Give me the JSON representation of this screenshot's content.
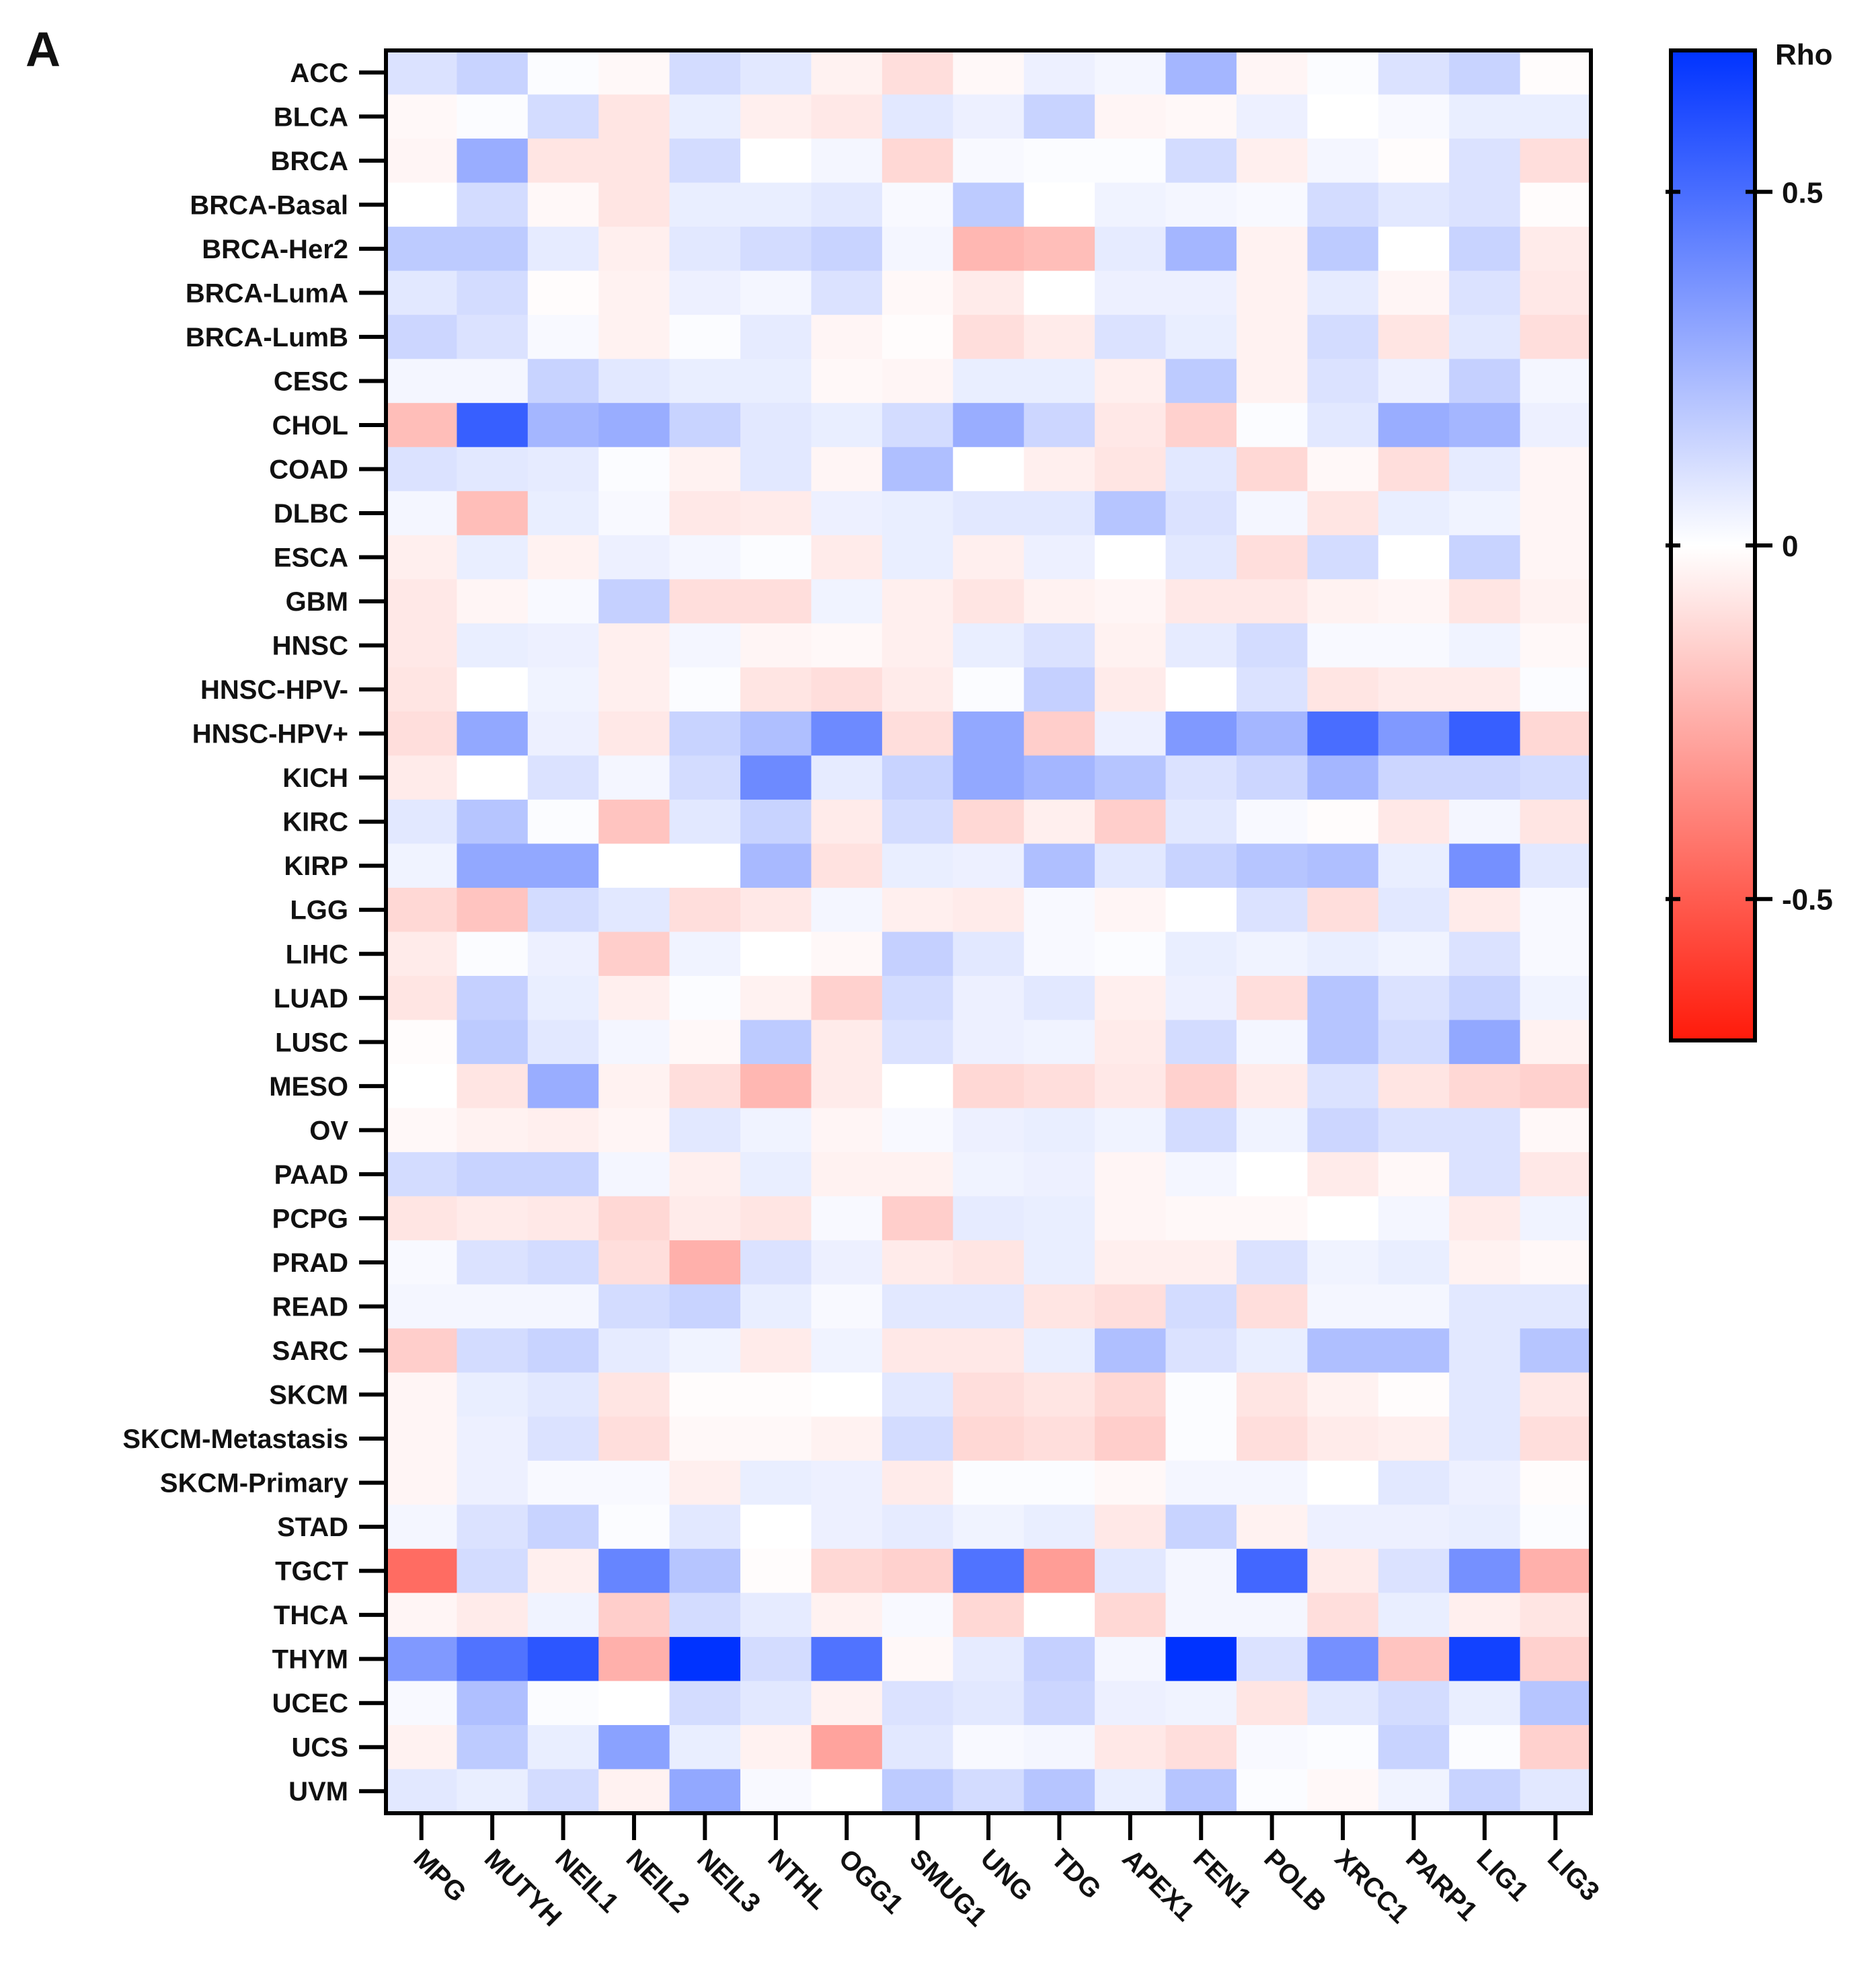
{
  "panel_label": "A",
  "chart_data": {
    "type": "heatmap",
    "title": "",
    "xlabel": "",
    "ylabel": "",
    "rows": [
      "ACC",
      "BLCA",
      "BRCA",
      "BRCA-Basal",
      "BRCA-Her2",
      "BRCA-LumA",
      "BRCA-LumB",
      "CESC",
      "CHOL",
      "COAD",
      "DLBC",
      "ESCA",
      "GBM",
      "HNSC",
      "HNSC-HPV-",
      "HNSC-HPV+",
      "KICH",
      "KIRC",
      "KIRP",
      "LGG",
      "LIHC",
      "LUAD",
      "LUSC",
      "MESO",
      "OV",
      "PAAD",
      "PCPG",
      "PRAD",
      "READ",
      "SARC",
      "SKCM",
      "SKCM-Metastasis",
      "SKCM-Primary",
      "STAD",
      "TGCT",
      "THCA",
      "THYM",
      "UCEC",
      "UCS",
      "UVM"
    ],
    "columns": [
      "MPG",
      "MUTYH",
      "NEIL1",
      "NEIL2",
      "NEIL3",
      "NTHL",
      "OGG1",
      "SMUG1",
      "UNG",
      "TDG",
      "APEX1",
      "FEN1",
      "POLB",
      "XRCC1",
      "PARP1",
      "LIG1",
      "LIG3"
    ],
    "values": [
      [
        0.1,
        0.15,
        0.01,
        -0.02,
        0.12,
        0.08,
        -0.04,
        -0.1,
        -0.02,
        0.05,
        0.03,
        0.25,
        -0.03,
        0.01,
        0.1,
        0.15,
        -0.01
      ],
      [
        -0.02,
        0.01,
        0.12,
        -0.08,
        0.06,
        -0.05,
        -0.07,
        0.08,
        0.05,
        0.15,
        -0.03,
        -0.02,
        0.05,
        0.0,
        0.02,
        0.06,
        0.06
      ],
      [
        -0.03,
        0.28,
        -0.08,
        -0.08,
        0.12,
        0.0,
        0.03,
        -0.12,
        0.02,
        0.01,
        0.01,
        0.12,
        -0.05,
        0.03,
        -0.01,
        0.1,
        -0.1
      ],
      [
        0.0,
        0.12,
        -0.02,
        -0.08,
        0.06,
        0.06,
        0.08,
        0.02,
        0.18,
        0.0,
        0.04,
        0.03,
        0.02,
        0.12,
        0.08,
        0.1,
        -0.01
      ],
      [
        0.18,
        0.18,
        0.07,
        -0.05,
        0.08,
        0.12,
        0.15,
        0.03,
        -0.22,
        -0.2,
        0.07,
        0.25,
        -0.04,
        0.18,
        0.0,
        0.15,
        -0.06
      ],
      [
        0.08,
        0.12,
        -0.01,
        -0.04,
        0.05,
        0.03,
        0.1,
        -0.02,
        -0.06,
        0.0,
        0.05,
        0.05,
        -0.04,
        0.07,
        -0.03,
        0.1,
        -0.07
      ],
      [
        0.14,
        0.1,
        0.02,
        -0.04,
        0.01,
        0.07,
        -0.03,
        -0.01,
        -0.1,
        -0.06,
        0.1,
        0.06,
        -0.04,
        0.12,
        -0.08,
        0.08,
        -0.1
      ],
      [
        0.03,
        0.03,
        0.15,
        0.08,
        0.06,
        0.06,
        -0.02,
        -0.03,
        0.06,
        0.06,
        -0.05,
        0.18,
        -0.04,
        0.1,
        0.05,
        0.16,
        0.03
      ],
      [
        -0.2,
        0.55,
        0.25,
        0.28,
        0.15,
        0.08,
        0.06,
        0.12,
        0.28,
        0.14,
        -0.07,
        -0.14,
        0.01,
        0.08,
        0.28,
        0.25,
        0.05
      ],
      [
        0.1,
        0.08,
        0.07,
        0.01,
        -0.04,
        0.08,
        -0.03,
        0.22,
        0.0,
        -0.05,
        -0.08,
        0.08,
        -0.12,
        -0.02,
        -0.1,
        0.07,
        -0.03
      ],
      [
        0.03,
        -0.2,
        0.06,
        0.02,
        -0.07,
        -0.06,
        0.05,
        0.06,
        0.08,
        0.08,
        0.2,
        0.1,
        0.03,
        -0.08,
        0.06,
        0.04,
        -0.03
      ],
      [
        -0.05,
        0.06,
        -0.04,
        0.05,
        0.03,
        0.01,
        -0.06,
        0.06,
        -0.05,
        0.05,
        0.0,
        0.08,
        -0.1,
        0.12,
        0.0,
        0.15,
        -0.03
      ],
      [
        -0.07,
        -0.03,
        0.02,
        0.16,
        -0.1,
        -0.1,
        0.04,
        -0.05,
        -0.08,
        -0.04,
        -0.03,
        -0.07,
        -0.07,
        -0.04,
        -0.03,
        -0.08,
        -0.04
      ],
      [
        -0.07,
        0.06,
        0.05,
        -0.05,
        0.03,
        -0.03,
        -0.02,
        -0.05,
        0.06,
        0.1,
        -0.04,
        0.07,
        0.12,
        0.02,
        0.02,
        0.04,
        -0.02
      ],
      [
        -0.08,
        0.0,
        0.04,
        -0.05,
        0.01,
        -0.08,
        -0.1,
        -0.06,
        0.01,
        0.16,
        -0.06,
        0.0,
        0.1,
        -0.08,
        -0.06,
        -0.06,
        0.01
      ],
      [
        -0.1,
        0.3,
        0.05,
        -0.07,
        0.15,
        0.22,
        0.4,
        -0.1,
        0.3,
        -0.15,
        0.05,
        0.35,
        0.25,
        0.5,
        0.35,
        0.55,
        -0.12
      ],
      [
        -0.06,
        0.0,
        0.1,
        0.03,
        0.12,
        0.4,
        0.07,
        0.15,
        0.3,
        0.25,
        0.2,
        0.1,
        0.14,
        0.25,
        0.14,
        0.14,
        0.12
      ],
      [
        0.08,
        0.2,
        0.01,
        -0.18,
        0.08,
        0.15,
        -0.06,
        0.12,
        -0.12,
        -0.05,
        -0.15,
        0.08,
        0.02,
        -0.01,
        -0.07,
        0.03,
        -0.08
      ],
      [
        0.04,
        0.3,
        0.3,
        0.0,
        0.0,
        0.24,
        -0.09,
        0.06,
        0.05,
        0.22,
        0.08,
        0.15,
        0.2,
        0.22,
        0.06,
        0.38,
        0.08
      ],
      [
        -0.12,
        -0.18,
        0.12,
        0.08,
        -0.1,
        -0.07,
        0.03,
        -0.05,
        -0.06,
        0.02,
        -0.03,
        0.0,
        0.1,
        -0.1,
        0.08,
        -0.06,
        0.02
      ],
      [
        -0.06,
        0.01,
        0.05,
        -0.15,
        0.04,
        0.0,
        -0.02,
        0.16,
        0.08,
        0.02,
        0.01,
        0.06,
        0.04,
        0.06,
        0.04,
        0.1,
        0.02
      ],
      [
        -0.08,
        0.16,
        0.06,
        -0.05,
        0.01,
        -0.04,
        -0.14,
        0.12,
        0.05,
        0.08,
        -0.05,
        0.05,
        -0.1,
        0.2,
        0.1,
        0.15,
        0.04
      ],
      [
        -0.01,
        0.18,
        0.08,
        0.03,
        -0.02,
        0.18,
        -0.06,
        0.1,
        0.05,
        0.04,
        -0.06,
        0.12,
        0.03,
        0.2,
        0.12,
        0.3,
        -0.04
      ],
      [
        0.0,
        -0.08,
        0.28,
        -0.04,
        -0.1,
        -0.22,
        -0.06,
        0.0,
        -0.12,
        -0.1,
        -0.07,
        -0.14,
        -0.06,
        0.1,
        -0.08,
        -0.12,
        -0.14
      ],
      [
        -0.02,
        -0.04,
        -0.05,
        -0.03,
        0.08,
        0.04,
        -0.03,
        0.02,
        0.05,
        0.06,
        0.04,
        0.12,
        0.04,
        0.14,
        0.1,
        0.1,
        -0.02
      ],
      [
        0.12,
        0.15,
        0.15,
        0.03,
        -0.05,
        0.06,
        -0.04,
        -0.04,
        0.04,
        0.05,
        -0.03,
        0.03,
        0.0,
        -0.06,
        -0.02,
        0.1,
        -0.07
      ],
      [
        -0.08,
        -0.06,
        -0.07,
        -0.12,
        -0.06,
        -0.08,
        0.02,
        -0.15,
        0.07,
        0.06,
        -0.03,
        -0.02,
        -0.02,
        0.0,
        0.03,
        -0.06,
        0.04
      ],
      [
        0.02,
        0.1,
        0.12,
        -0.1,
        -0.24,
        0.1,
        0.05,
        -0.06,
        -0.08,
        0.06,
        -0.05,
        -0.05,
        0.1,
        0.04,
        0.06,
        -0.04,
        -0.02
      ],
      [
        0.03,
        0.03,
        0.03,
        0.12,
        0.15,
        0.06,
        0.02,
        0.08,
        0.08,
        -0.08,
        -0.1,
        0.12,
        -0.1,
        0.03,
        0.03,
        0.08,
        0.08
      ],
      [
        -0.15,
        0.12,
        0.15,
        0.07,
        0.04,
        -0.06,
        0.04,
        -0.07,
        -0.07,
        0.06,
        0.22,
        0.1,
        0.06,
        0.22,
        0.22,
        0.08,
        0.2
      ],
      [
        -0.03,
        0.06,
        0.08,
        -0.08,
        -0.01,
        -0.01,
        0.0,
        0.08,
        -0.1,
        -0.08,
        -0.12,
        0.01,
        -0.08,
        -0.04,
        -0.01,
        0.08,
        -0.07
      ],
      [
        -0.03,
        0.05,
        0.1,
        -0.1,
        -0.02,
        -0.02,
        -0.04,
        0.12,
        -0.12,
        -0.1,
        -0.15,
        0.01,
        -0.1,
        -0.06,
        -0.05,
        0.08,
        -0.1
      ],
      [
        -0.03,
        0.05,
        0.02,
        0.02,
        -0.05,
        0.06,
        0.05,
        -0.06,
        0.01,
        0.01,
        -0.02,
        0.03,
        0.03,
        0.0,
        0.08,
        0.05,
        -0.01
      ],
      [
        0.03,
        0.1,
        0.15,
        0.01,
        0.08,
        0.0,
        0.05,
        0.07,
        0.04,
        0.06,
        -0.07,
        0.15,
        -0.04,
        0.05,
        0.05,
        0.06,
        0.01
      ],
      [
        -0.45,
        0.12,
        -0.05,
        0.42,
        0.2,
        -0.01,
        -0.12,
        -0.14,
        0.48,
        -0.3,
        0.08,
        0.03,
        0.52,
        -0.06,
        0.1,
        0.38,
        -0.24
      ],
      [
        -0.03,
        -0.06,
        0.04,
        -0.15,
        0.12,
        0.07,
        -0.04,
        0.02,
        -0.12,
        0.0,
        -0.12,
        0.03,
        0.03,
        -0.1,
        0.06,
        -0.05,
        -0.08
      ],
      [
        0.35,
        0.48,
        0.58,
        -0.24,
        0.7,
        0.12,
        0.48,
        -0.02,
        0.07,
        0.16,
        0.03,
        0.72,
        0.1,
        0.38,
        -0.18,
        0.65,
        -0.14
      ],
      [
        0.02,
        0.22,
        0.01,
        0.0,
        0.12,
        0.08,
        -0.04,
        0.1,
        0.08,
        0.14,
        0.05,
        0.04,
        -0.08,
        0.08,
        0.12,
        0.06,
        0.2
      ],
      [
        -0.04,
        0.18,
        0.06,
        0.32,
        0.06,
        -0.04,
        -0.28,
        0.08,
        0.02,
        0.03,
        -0.07,
        -0.1,
        0.02,
        0.01,
        0.15,
        0.01,
        -0.14
      ],
      [
        0.08,
        0.06,
        0.12,
        -0.04,
        0.3,
        0.02,
        0.0,
        0.18,
        0.12,
        0.2,
        0.06,
        0.2,
        0.01,
        -0.02,
        0.04,
        0.15,
        0.08
      ]
    ],
    "colorbar": {
      "title": "Rho",
      "min": -0.7,
      "max": 0.7,
      "ticks": [
        0.5,
        0,
        -0.5
      ],
      "tick_labels": [
        "0.5",
        "0",
        "-0.5"
      ],
      "colors": {
        "negative": "#ff1a0a",
        "zero": "#ffffff",
        "positive": "#0033ff"
      }
    }
  }
}
